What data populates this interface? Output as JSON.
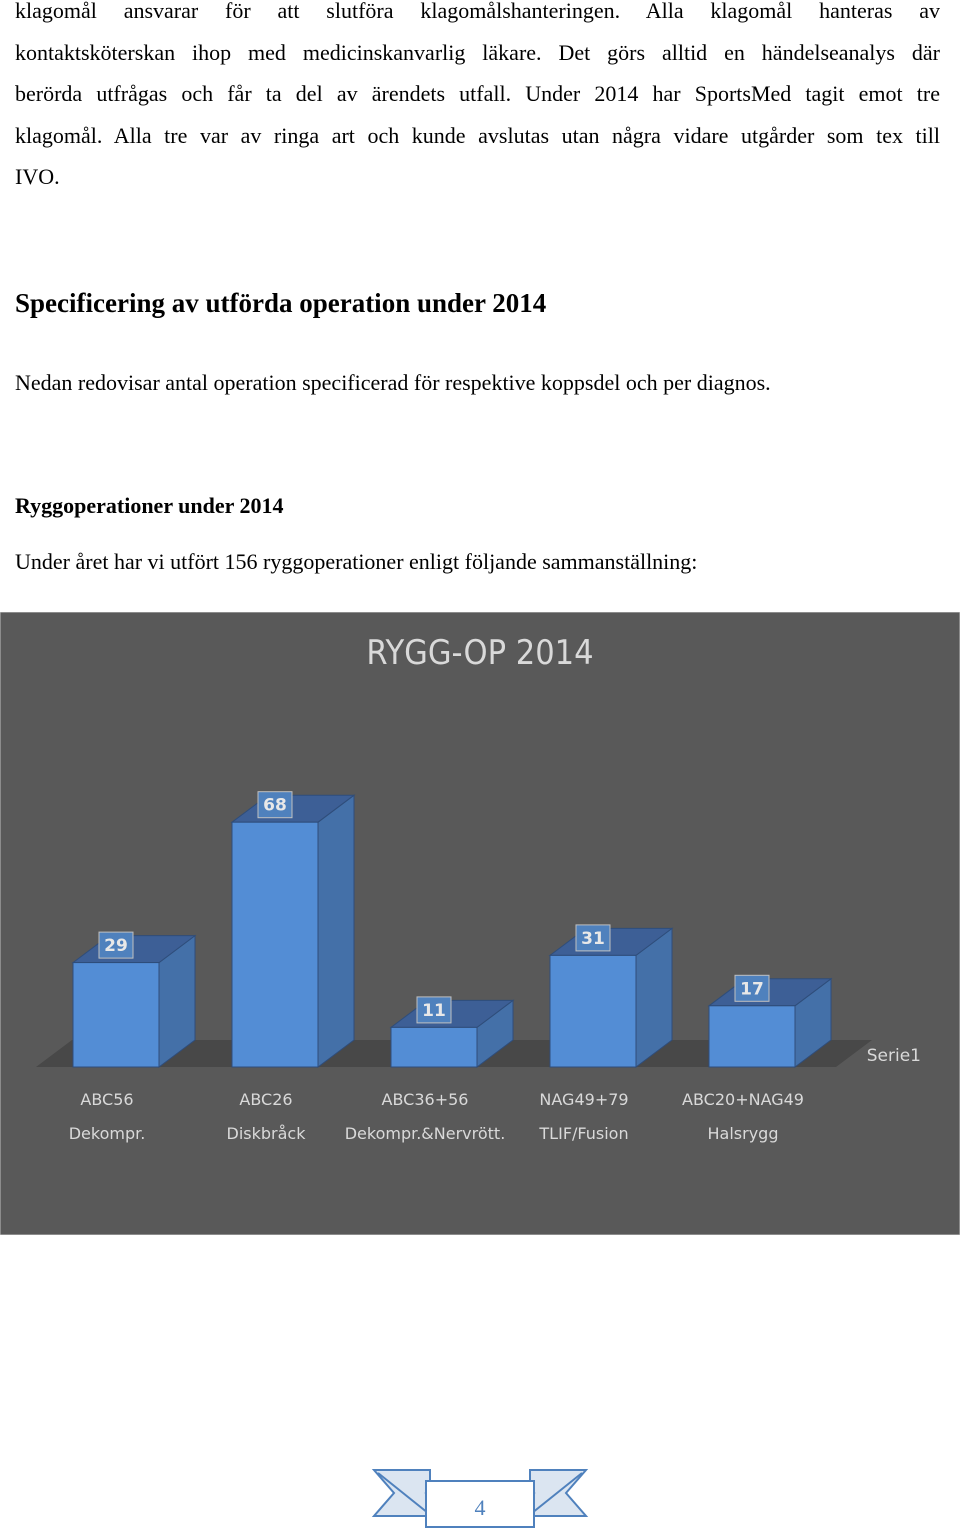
{
  "intro": {
    "lines": [
      "klagomål ansvarar för att slutföra klagomålshanteringen. Alla klagomål hanteras av",
      "kontaktsköterskan ihop med medicinskanvarlig läkare. Det görs alltid en händelseanalys där",
      "berörda utfrågas och får ta del av ärendets utfall. Under 2014 har SportsMed tagit emot tre",
      "klagomål. Alla tre var av ringa art och kunde avslutas utan några vidare utgårder som tex till",
      "IVO."
    ]
  },
  "section": {
    "heading": "Specificering av utförda operation under 2014",
    "text": "Nedan redovisar antal operation specificerad för respektive koppsdel och per diagnos."
  },
  "subsection": {
    "heading": "Ryggoperationer under 2014",
    "text": "Under året har vi utfört 156 ryggoperationer enligt följande sammanställning:"
  },
  "chart_data": {
    "type": "bar",
    "title": "RYGG-OP 2014",
    "categories": [
      [
        "ABC56",
        "Dekompr."
      ],
      [
        "ABC26",
        "Diskbråck"
      ],
      [
        "ABC36+56",
        "Dekompr.&Nervrött."
      ],
      [
        "NAG49+79",
        "TLIF/Fusion"
      ],
      [
        "ABC20+NAG49",
        "Halsrygg"
      ]
    ],
    "series": [
      {
        "name": "Serie1",
        "values": [
          29,
          68,
          11,
          31,
          17
        ]
      }
    ],
    "ylim": [
      0,
      80
    ],
    "grid": false,
    "legend": "right",
    "colors": {
      "background": "#595959",
      "bar_front": "#538dd5",
      "bar_side": "#4470a8",
      "bar_top": "#3d5f96",
      "floor": "#484848",
      "text": "#d9d9d9",
      "label_bg": "#4f81bd"
    }
  },
  "footer": {
    "page_number": "4"
  }
}
